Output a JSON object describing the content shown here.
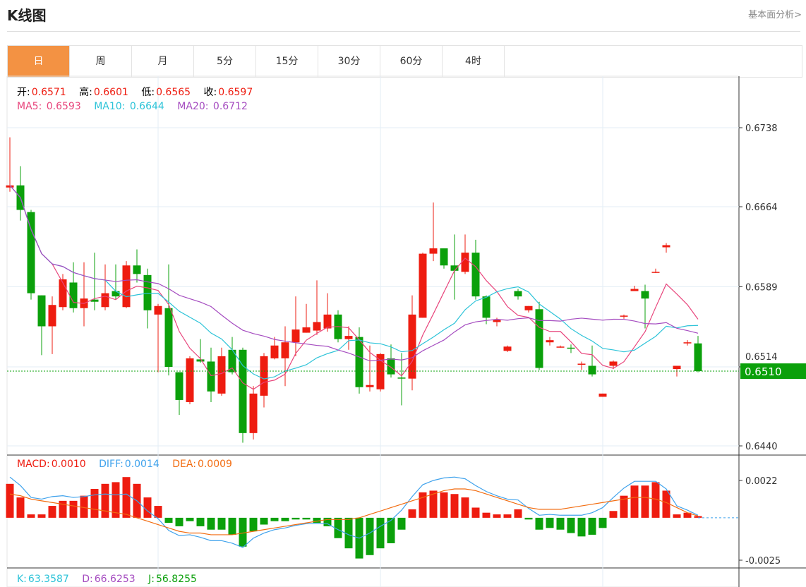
{
  "header": {
    "title": "K线图",
    "more_link": "基本面分析>"
  },
  "tabs": [
    {
      "label": "日",
      "active": true
    },
    {
      "label": "周"
    },
    {
      "label": "月"
    },
    {
      "label": "5分"
    },
    {
      "label": "15分"
    },
    {
      "label": "30分"
    },
    {
      "label": "60分"
    },
    {
      "label": "4时"
    }
  ],
  "ohlc_legend": {
    "open_label": "开:",
    "open": "0.6571",
    "high_label": "高:",
    "high": "0.6601",
    "low_label": "低:",
    "low": "0.6565",
    "close_label": "收:",
    "close": "0.6597"
  },
  "ma_legend": {
    "ma5_label": "MA5:",
    "ma5": "0.6593",
    "ma10_label": "MA10:",
    "ma10": "0.6644",
    "ma20_label": "MA20:",
    "ma20": "0.6712"
  },
  "macd_legend": {
    "macd_label": "MACD:",
    "macd": "0.0010",
    "diff_label": "DIFF:",
    "diff": "0.0014",
    "dea_label": "DEA:",
    "dea": "0.0009"
  },
  "kdj_legend": {
    "k_label": "K:",
    "k": "63.3587",
    "d_label": "D:",
    "d": "66.6253",
    "j_label": "J:",
    "j": "56.8255"
  },
  "colors": {
    "up": "#ee1c10",
    "down": "#0ba00b",
    "ma5": "#e8457c",
    "ma10": "#2cc3d8",
    "ma20": "#a54cc0",
    "diff": "#3fa2ec",
    "dea": "#f26c10",
    "active_tab": "#f39243"
  },
  "chart_data": {
    "type": "candlestick",
    "y_ticks": [
      "0.6738",
      "0.6664",
      "0.6589",
      "0.6514",
      "0.6440"
    ],
    "ylim": [
      0.644,
      0.6738
    ],
    "current_price": "0.6510",
    "candles": [
      [
        0.6682,
        0.6729,
        0.6678,
        0.6684
      ],
      [
        0.6684,
        0.6702,
        0.6651,
        0.6661
      ],
      [
        0.6659,
        0.6661,
        0.6577,
        0.6583
      ],
      [
        0.6581,
        0.6581,
        0.6525,
        0.6552
      ],
      [
        0.6552,
        0.658,
        0.6526,
        0.6572
      ],
      [
        0.657,
        0.6601,
        0.6567,
        0.6596
      ],
      [
        0.6593,
        0.6612,
        0.6565,
        0.6569
      ],
      [
        0.6569,
        0.6612,
        0.6552,
        0.6578
      ],
      [
        0.6577,
        0.6621,
        0.6567,
        0.6575
      ],
      [
        0.657,
        0.661,
        0.6567,
        0.6583
      ],
      [
        0.6585,
        0.661,
        0.6577,
        0.658
      ],
      [
        0.657,
        0.6613,
        0.6569,
        0.6609
      ],
      [
        0.6609,
        0.6624,
        0.6593,
        0.6601
      ],
      [
        0.66,
        0.6606,
        0.655,
        0.6567
      ],
      [
        0.6563,
        0.6573,
        0.6509,
        0.6571
      ],
      [
        0.6569,
        0.661,
        0.6506,
        0.6514
      ],
      [
        0.6509,
        0.6509,
        0.6469,
        0.6483
      ],
      [
        0.6481,
        0.6524,
        0.6479,
        0.6522
      ],
      [
        0.6521,
        0.654,
        0.6518,
        0.6519
      ],
      [
        0.6519,
        0.6532,
        0.6481,
        0.6491
      ],
      [
        0.6489,
        0.6532,
        0.6487,
        0.6524
      ],
      [
        0.653,
        0.6542,
        0.6507,
        0.6509
      ],
      [
        0.653,
        0.6532,
        0.6443,
        0.6452
      ],
      [
        0.6452,
        0.6496,
        0.6446,
        0.6489
      ],
      [
        0.6487,
        0.6527,
        0.6476,
        0.6524
      ],
      [
        0.6522,
        0.6542,
        0.6521,
        0.6534
      ],
      [
        0.6522,
        0.6552,
        0.6496,
        0.6537
      ],
      [
        0.6537,
        0.658,
        0.6524,
        0.6549
      ],
      [
        0.6546,
        0.6573,
        0.6546,
        0.6551
      ],
      [
        0.6548,
        0.6595,
        0.6544,
        0.6556
      ],
      [
        0.655,
        0.6583,
        0.6547,
        0.6563
      ],
      [
        0.6563,
        0.6567,
        0.6537,
        0.654
      ],
      [
        0.654,
        0.6552,
        0.653,
        0.6543
      ],
      [
        0.6542,
        0.6551,
        0.6489,
        0.6495
      ],
      [
        0.6495,
        0.6534,
        0.6491,
        0.6497
      ],
      [
        0.6493,
        0.6527,
        0.6491,
        0.6526
      ],
      [
        0.6522,
        0.6535,
        0.6504,
        0.6507
      ],
      [
        0.6504,
        0.6527,
        0.6478,
        0.6503
      ],
      [
        0.6503,
        0.6581,
        0.6492,
        0.6563
      ],
      [
        0.656,
        0.6621,
        0.656,
        0.662
      ],
      [
        0.662,
        0.6668,
        0.6613,
        0.6625
      ],
      [
        0.6625,
        0.6625,
        0.6606,
        0.6609
      ],
      [
        0.6609,
        0.6638,
        0.6577,
        0.6604
      ],
      [
        0.6603,
        0.6638,
        0.6601,
        0.6621
      ],
      [
        0.6621,
        0.6633,
        0.6577,
        0.658
      ],
      [
        0.658,
        0.6581,
        0.6554,
        0.656
      ],
      [
        0.6556,
        0.656,
        0.6552,
        0.6558
      ],
      [
        0.6529,
        0.6534,
        0.6528,
        0.6533
      ],
      [
        0.6585,
        0.6587,
        0.6577,
        0.658
      ],
      [
        0.6567,
        0.6571,
        0.6565,
        0.6571
      ],
      [
        0.6568,
        0.6575,
        0.6511,
        0.6513
      ],
      [
        0.6537,
        0.6542,
        0.6534,
        0.6539
      ],
      [
        0.6532,
        0.6534,
        0.6532,
        0.6533
      ],
      [
        0.6532,
        0.6535,
        0.6527,
        0.6531
      ],
      [
        0.6516,
        0.6519,
        0.6511,
        0.6517
      ],
      [
        0.6515,
        0.6534,
        0.6505,
        0.6507
      ],
      [
        0.6486,
        0.6489,
        0.6486,
        0.6489
      ],
      [
        0.6515,
        0.652,
        0.6512,
        0.6519
      ],
      [
        0.6562,
        0.6563,
        0.6559,
        0.6562
      ],
      [
        0.6585,
        0.659,
        0.6585,
        0.6587
      ],
      [
        0.6585,
        0.6591,
        0.655,
        0.6578
      ],
      [
        0.6603,
        0.6606,
        0.6602,
        0.6603
      ],
      [
        0.6626,
        0.663,
        0.6621,
        0.6628
      ],
      [
        0.6512,
        0.6515,
        0.6505,
        0.6515
      ],
      [
        0.6536,
        0.6539,
        0.6534,
        0.6537
      ],
      [
        0.6536,
        0.6543,
        0.6509,
        0.651
      ]
    ],
    "macd": {
      "y_ticks": [
        "0.0022",
        "-0.0025"
      ],
      "ylim": [
        -0.0025,
        0.0022
      ],
      "hist": [
        0.002,
        0.0012,
        0.0002,
        0.0002,
        0.0007,
        0.001,
        0.001,
        0.0013,
        0.0017,
        0.002,
        0.0021,
        0.0024,
        0.002,
        0.0012,
        0.0007,
        -0.0003,
        -0.0005,
        -0.0002,
        -0.0005,
        -0.0007,
        -0.0007,
        -0.001,
        -0.0017,
        -0.0008,
        -0.0004,
        -0.0002,
        -0.0002,
        -0.0001,
        -0.0001,
        -0.0003,
        -0.0005,
        -0.0012,
        -0.0018,
        -0.0024,
        -0.0022,
        -0.0018,
        -0.0015,
        -0.0007,
        0.0005,
        0.0015,
        0.0016,
        0.0015,
        0.0014,
        0.0012,
        0.0006,
        0.0003,
        0.0002,
        0.0002,
        0.0005,
        -0.0001,
        -0.0007,
        -0.0006,
        -0.0007,
        -0.0009,
        -0.0011,
        -0.001,
        -0.0006,
        0.0004,
        0.0013,
        0.0019,
        0.0019,
        0.0021,
        0.0016,
        0.0002,
        0.0003,
        0.0001
      ],
      "dea": [
        0.0014,
        0.0013,
        0.0011,
        0.001,
        0.0009,
        0.0008,
        0.0007,
        0.0006,
        0.0005,
        0.0004,
        0.0003,
        0.0002,
        0.0,
        -0.0002,
        -0.0004,
        -0.0006,
        -0.0008,
        -0.0009,
        -0.0009,
        -0.001,
        -0.001,
        -0.001,
        -0.0009,
        -0.0008,
        -0.0007,
        -0.0006,
        -0.0005,
        -0.0004,
        -0.0003,
        -0.0002,
        -0.0001,
        -0.0001,
        -0.0001,
        0.0,
        0.0002,
        0.0004,
        0.0006,
        0.0008,
        0.001,
        0.0012,
        0.0014,
        0.0016,
        0.0017,
        0.0017,
        0.0016,
        0.0014,
        0.0012,
        0.001,
        0.0008,
        0.0006,
        0.0005,
        0.0005,
        0.0005,
        0.0006,
        0.0007,
        0.0008,
        0.0009,
        0.001,
        0.0011,
        0.0012,
        0.0012,
        0.0011,
        0.0009,
        0.0006,
        0.0003,
        0.0001
      ]
    }
  }
}
